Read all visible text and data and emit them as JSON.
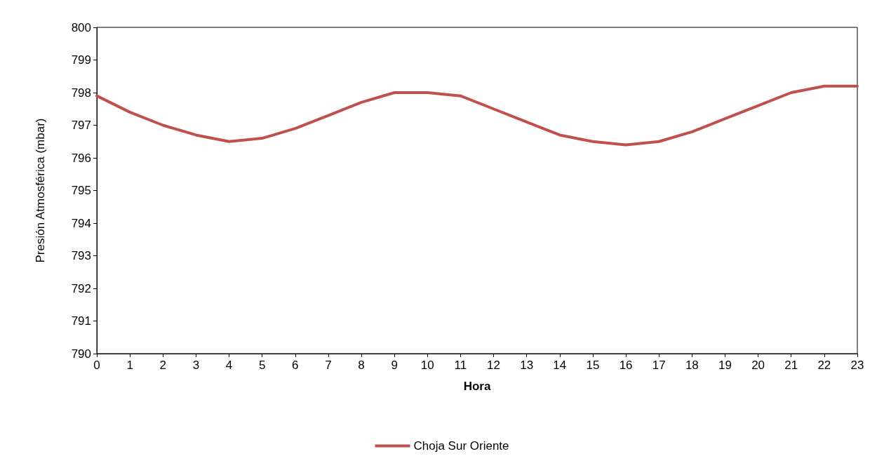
{
  "chart_data": {
    "type": "line",
    "xlabel": "Hora",
    "ylabel": "Presión Atmosférica (mbar)",
    "x": [
      0,
      1,
      2,
      3,
      4,
      5,
      6,
      7,
      8,
      9,
      10,
      11,
      12,
      13,
      14,
      15,
      16,
      17,
      18,
      19,
      20,
      21,
      22,
      23
    ],
    "series": [
      {
        "name": "Choja Sur Oriente",
        "color": "#c0504d",
        "values": [
          797.9,
          797.4,
          797.0,
          796.7,
          796.5,
          796.6,
          796.9,
          797.3,
          797.7,
          798.0,
          798.0,
          797.9,
          797.5,
          797.1,
          796.7,
          796.5,
          796.4,
          796.5,
          796.8,
          797.2,
          797.6,
          798.0,
          798.2,
          798.2
        ]
      }
    ],
    "xlim": [
      0,
      23
    ],
    "xticks": [
      0,
      1,
      2,
      3,
      4,
      5,
      6,
      7,
      8,
      9,
      10,
      11,
      12,
      13,
      14,
      15,
      16,
      17,
      18,
      19,
      20,
      21,
      22,
      23
    ],
    "ylim": [
      790,
      800
    ],
    "yticks": [
      790,
      791,
      792,
      793,
      794,
      795,
      796,
      797,
      798,
      799,
      800
    ],
    "grid": false,
    "legend": "bottom",
    "marker": "none",
    "line_style": "solid"
  }
}
